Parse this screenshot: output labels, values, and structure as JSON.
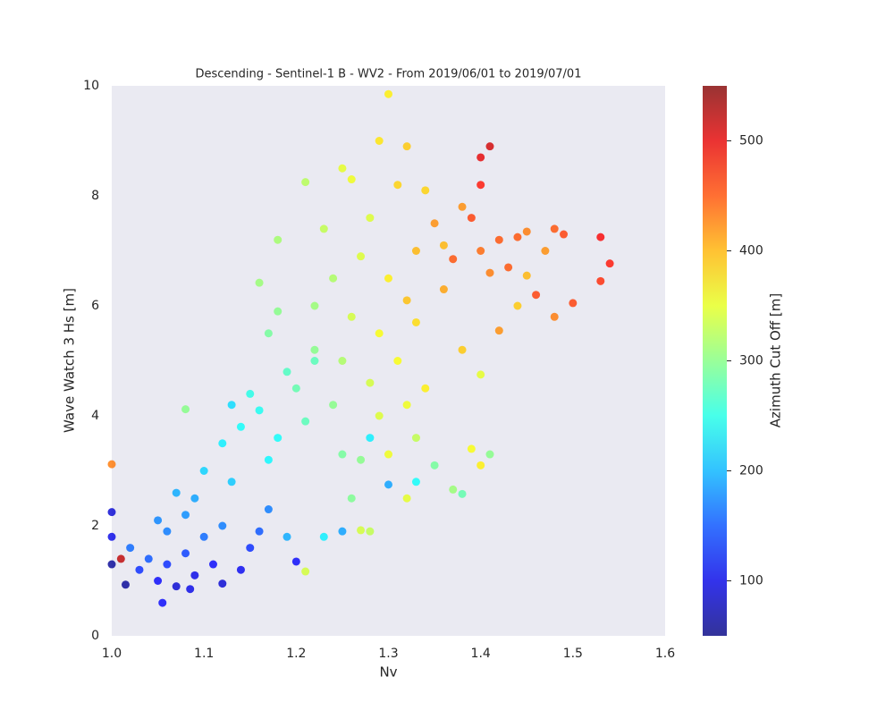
{
  "chart_data": {
    "type": "scatter",
    "title": "Descending - Sentinel-1 B - WV2 - From 2019/06/01 to 2019/07/01",
    "x_label": "Nv",
    "y_label": "Wave Watch 3 Hs [m]",
    "colorbar_label": "Azimuth Cut Off [m]",
    "colormap": "jet",
    "xlim": [
      1.0,
      1.6
    ],
    "xticks": [
      {
        "value": 1.0,
        "label": "1.0"
      },
      1.1,
      1.2,
      1.3,
      1.4,
      1.5,
      1.6
    ],
    "ylim": [
      0,
      10
    ],
    "yticks": [
      0,
      2,
      4,
      6,
      8,
      10
    ],
    "clim": [
      50,
      550
    ],
    "cticks": [
      100,
      200,
      300,
      400,
      500
    ],
    "x": [
      1.05,
      1.06,
      1.07,
      1.08,
      1.09,
      1.1,
      1.04,
      1.03,
      1.06,
      1.08,
      1.09,
      1.11,
      1.12,
      1.13,
      1.1,
      1.07,
      1.05,
      1.02,
      1.0,
      1.0,
      1.0,
      1.01,
      1.0,
      1.015,
      1.055,
      1.085,
      1.12,
      1.14,
      1.15,
      1.16,
      1.17,
      1.19,
      1.2,
      1.21,
      1.23,
      1.25,
      1.12,
      1.14,
      1.15,
      1.16,
      1.13,
      1.08,
      1.17,
      1.18,
      1.19,
      1.17,
      1.18,
      1.16,
      1.18,
      1.2,
      1.21,
      1.22,
      1.22,
      1.21,
      1.23,
      1.24,
      1.24,
      1.25,
      1.26,
      1.27,
      1.25,
      1.26,
      1.27,
      1.25,
      1.26,
      1.28,
      1.28,
      1.29,
      1.28,
      1.3,
      1.28,
      1.29,
      1.3,
      1.29,
      1.3,
      1.31,
      1.31,
      1.32,
      1.32,
      1.33,
      1.32,
      1.33,
      1.32,
      1.34,
      1.35,
      1.33,
      1.34,
      1.35,
      1.33,
      1.3,
      1.36,
      1.36,
      1.37,
      1.38,
      1.38,
      1.37,
      1.38,
      1.39,
      1.39,
      1.4,
      1.4,
      1.41,
      1.4,
      1.41,
      1.4,
      1.4,
      1.42,
      1.42,
      1.43,
      1.44,
      1.45,
      1.45,
      1.46,
      1.47,
      1.48,
      1.48,
      1.49,
      1.5,
      1.53,
      1.53,
      1.54,
      1.44,
      1.41,
      1.27,
      1.22
    ],
    "values": [
      1.0,
      1.3,
      0.9,
      1.5,
      1.1,
      1.8,
      1.4,
      1.2,
      1.9,
      2.2,
      2.5,
      1.3,
      2.0,
      2.8,
      3.0,
      2.6,
      2.1,
      1.6,
      1.8,
      2.25,
      1.3,
      1.4,
      3.12,
      0.93,
      0.6,
      0.85,
      0.95,
      1.2,
      1.6,
      1.9,
      2.3,
      1.8,
      1.35,
      1.17,
      1.8,
      1.9,
      3.5,
      3.8,
      4.4,
      4.1,
      4.2,
      4.12,
      3.2,
      3.6,
      4.8,
      5.5,
      5.9,
      6.42,
      7.2,
      4.5,
      3.9,
      5.2,
      6.0,
      8.25,
      7.4,
      6.5,
      4.2,
      3.3,
      2.5,
      3.2,
      5.0,
      5.8,
      6.9,
      8.5,
      8.3,
      7.6,
      4.6,
      4.0,
      1.9,
      3.3,
      3.6,
      5.5,
      6.5,
      9.0,
      9.85,
      8.2,
      5.0,
      4.2,
      2.5,
      3.6,
      6.1,
      7.0,
      8.9,
      8.1,
      7.5,
      5.7,
      4.5,
      3.1,
      2.8,
      2.75,
      6.3,
      7.1,
      6.85,
      7.8,
      5.2,
      2.66,
      2.58,
      3.4,
      7.6,
      8.2,
      8.7,
      8.9,
      7.0,
      6.6,
      4.75,
      3.1,
      5.55,
      7.2,
      6.7,
      6.0,
      6.55,
      7.35,
      6.2,
      7.0,
      7.4,
      5.8,
      7.3,
      6.05,
      7.25,
      6.45,
      6.77,
      7.25,
      3.3,
      1.92,
      5.0
    ],
    "color_values": [
      110,
      130,
      90,
      140,
      100,
      160,
      150,
      130,
      170,
      180,
      190,
      110,
      170,
      210,
      215,
      195,
      175,
      160,
      100,
      90,
      60,
      520,
      430,
      60,
      110,
      100,
      90,
      105,
      130,
      150,
      170,
      195,
      110,
      340,
      230,
      190,
      230,
      240,
      250,
      245,
      220,
      300,
      235,
      240,
      270,
      290,
      300,
      310,
      315,
      280,
      275,
      300,
      310,
      325,
      330,
      320,
      300,
      290,
      295,
      300,
      320,
      340,
      345,
      350,
      355,
      345,
      340,
      345,
      330,
      355,
      230,
      360,
      370,
      375,
      370,
      385,
      360,
      355,
      350,
      330,
      395,
      400,
      390,
      385,
      420,
      380,
      370,
      290,
      240,
      190,
      410,
      400,
      450,
      420,
      390,
      310,
      280,
      360,
      460,
      480,
      500,
      510,
      440,
      430,
      350,
      370,
      420,
      450,
      450,
      390,
      400,
      430,
      460,
      420,
      450,
      430,
      460,
      460,
      490,
      470,
      480,
      450,
      300,
      340,
      275
    ]
  }
}
